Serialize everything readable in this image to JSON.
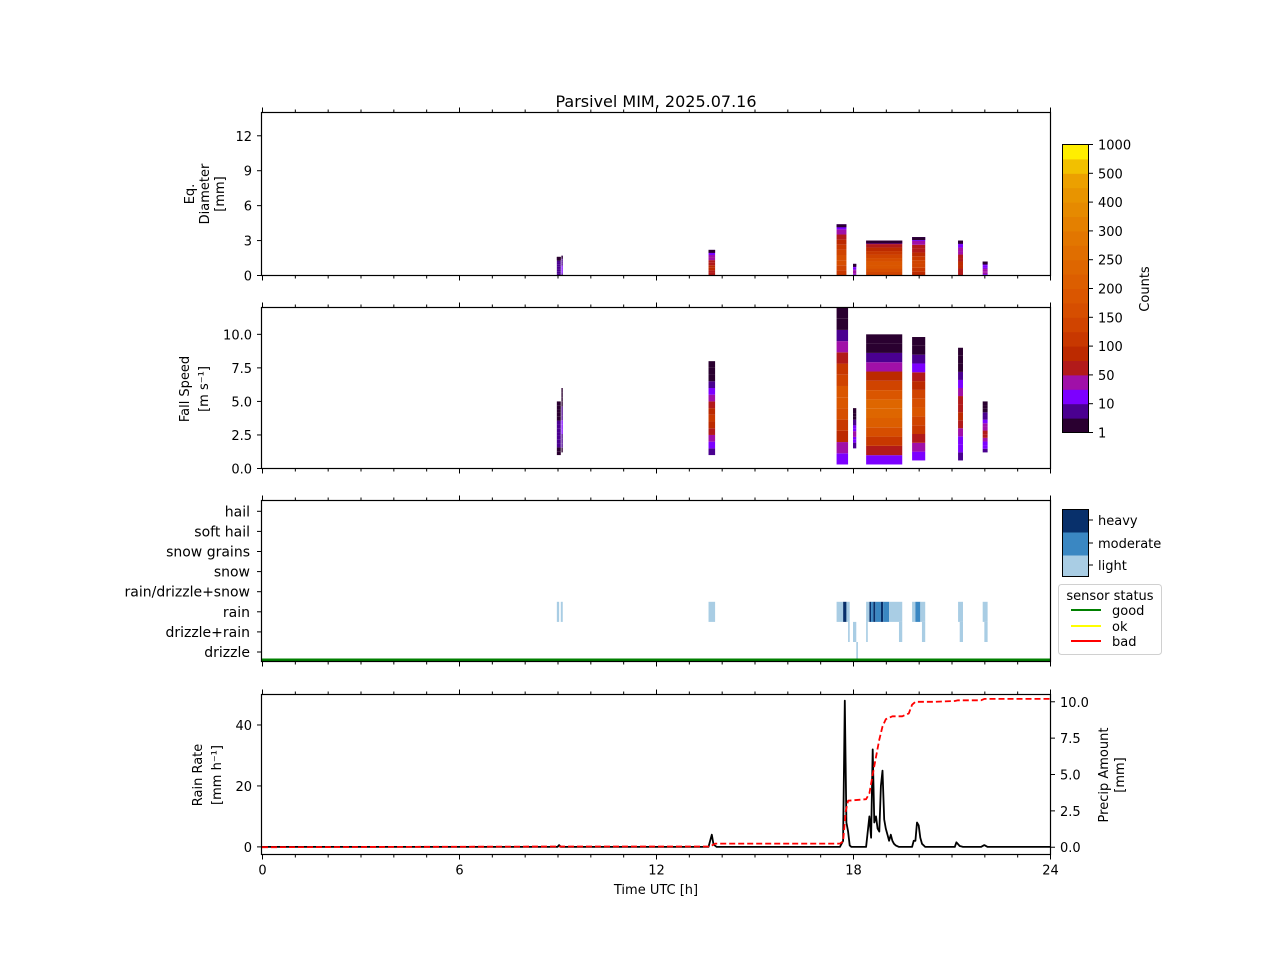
{
  "figure": {
    "title": "Parsivel MIM, 2025.07.16",
    "xlabel": "Time UTC [h]",
    "xticks": [
      "0",
      "6",
      "12",
      "18",
      "24"
    ]
  },
  "chart_data": [
    {
      "type": "heatmap",
      "name": "diameter-panel",
      "ylabel_lines": [
        "Eq.",
        "Diameter",
        "[mm]"
      ],
      "xlim": [
        0,
        24
      ],
      "ylim": [
        0,
        14
      ],
      "yticks": [
        "0",
        "3",
        "6",
        "9",
        "12"
      ],
      "ytick_values": [
        0,
        3,
        6,
        9,
        12
      ],
      "colorbar": {
        "label": "Counts",
        "tick_labels": [
          "1",
          "10",
          "50",
          "100",
          "150",
          "200",
          "250",
          "300",
          "400",
          "500",
          "1000"
        ],
        "colors": [
          "#2a0030",
          "#4a0090",
          "#7c00ff",
          "#a010a8",
          "#b21a1a",
          "#bc2a00",
          "#c83800",
          "#d04400",
          "#d64e00",
          "#da5600",
          "#dc5e00",
          "#de6600",
          "#e06e00",
          "#e27600",
          "#e48000",
          "#e68a00",
          "#e89400",
          "#eca000",
          "#f2c000",
          "#ffee00"
        ]
      },
      "events": [
        {
          "t0": 8.98,
          "t1": 9.1,
          "ymax": 1.6,
          "level": 1
        },
        {
          "t0": 9.12,
          "t1": 9.16,
          "ymax": 1.7,
          "level": 2
        },
        {
          "t0": 13.6,
          "t1": 13.8,
          "ymax": 2.2,
          "level": 5
        },
        {
          "t0": 17.5,
          "t1": 17.8,
          "ymax": 4.4,
          "level": 8
        },
        {
          "t0": 18.0,
          "t1": 18.1,
          "ymax": 1.0,
          "level": 3
        },
        {
          "t0": 18.4,
          "t1": 19.5,
          "ymax": 3.0,
          "level": 9
        },
        {
          "t0": 19.8,
          "t1": 20.2,
          "ymax": 3.3,
          "level": 7
        },
        {
          "t0": 21.2,
          "t1": 21.35,
          "ymax": 3.0,
          "level": 5
        },
        {
          "t0": 21.95,
          "t1": 22.1,
          "ymax": 1.2,
          "level": 3
        }
      ]
    },
    {
      "type": "heatmap",
      "name": "fallspeed-panel",
      "ylabel_lines": [
        "Fall Speed",
        "[m s⁻¹]"
      ],
      "xlim": [
        0,
        24
      ],
      "ylim": [
        0,
        12
      ],
      "yticks": [
        "0.0",
        "2.5",
        "5.0",
        "7.5",
        "10.0"
      ],
      "ytick_values": [
        0,
        2.5,
        5,
        7.5,
        10
      ],
      "events": [
        {
          "t0": 8.98,
          "t1": 9.1,
          "ymin": 1.0,
          "ymax": 5.0,
          "level": 1
        },
        {
          "t0": 9.12,
          "t1": 9.16,
          "ymin": 1.2,
          "ymax": 6.0,
          "level": 2
        },
        {
          "t0": 13.6,
          "t1": 13.8,
          "ymin": 1.0,
          "ymax": 8.0,
          "level": 6
        },
        {
          "t0": 17.5,
          "t1": 17.85,
          "ymin": 0.3,
          "ymax": 12.0,
          "level": 10
        },
        {
          "t0": 18.0,
          "t1": 18.1,
          "ymin": 1.5,
          "ymax": 4.5,
          "level": 3
        },
        {
          "t0": 18.4,
          "t1": 19.5,
          "ymin": 0.3,
          "ymax": 10.0,
          "level": 12
        },
        {
          "t0": 19.8,
          "t1": 20.2,
          "ymin": 0.6,
          "ymax": 9.8,
          "level": 9
        },
        {
          "t0": 21.2,
          "t1": 21.35,
          "ymin": 0.6,
          "ymax": 9.0,
          "level": 5
        },
        {
          "t0": 21.95,
          "t1": 22.1,
          "ymin": 1.2,
          "ymax": 5.0,
          "level": 4
        }
      ]
    },
    {
      "type": "heatmap",
      "name": "precip-type-panel",
      "categories": [
        "drizzle",
        "drizzle+rain",
        "rain",
        "rain/drizzle+snow",
        "snow",
        "snow grains",
        "soft hail",
        "hail"
      ],
      "xlim": [
        0,
        24
      ],
      "intensity_legend": {
        "labels": [
          "heavy",
          "moderate",
          "light"
        ],
        "colors": [
          "#08306b",
          "#3a87c2",
          "#a9cde4"
        ]
      },
      "sensor_status_legend": {
        "title": "sensor status",
        "labels": [
          "good",
          "ok",
          "bad"
        ],
        "colors": [
          "#008000",
          "#ffff00",
          "#ff0000"
        ]
      },
      "sensor_status": "good",
      "segments": [
        {
          "category": "rain",
          "t0": 8.98,
          "t1": 9.05,
          "intensity": "light"
        },
        {
          "category": "rain",
          "t0": 9.1,
          "t1": 9.16,
          "intensity": "light"
        },
        {
          "category": "rain",
          "t0": 13.6,
          "t1": 13.8,
          "intensity": "light"
        },
        {
          "category": "rain",
          "t0": 17.5,
          "t1": 17.7,
          "intensity": "light"
        },
        {
          "category": "rain",
          "t0": 17.7,
          "t1": 17.8,
          "intensity": "heavy"
        },
        {
          "category": "rain",
          "t0": 17.8,
          "t1": 17.9,
          "intensity": "light"
        },
        {
          "category": "rain",
          "t0": 18.4,
          "t1": 18.5,
          "intensity": "light"
        },
        {
          "category": "rain",
          "t0": 18.5,
          "t1": 18.55,
          "intensity": "heavy"
        },
        {
          "category": "rain",
          "t0": 18.55,
          "t1": 18.62,
          "intensity": "moderate"
        },
        {
          "category": "rain",
          "t0": 18.62,
          "t1": 18.68,
          "intensity": "heavy"
        },
        {
          "category": "rain",
          "t0": 18.68,
          "t1": 18.85,
          "intensity": "moderate"
        },
        {
          "category": "rain",
          "t0": 18.85,
          "t1": 18.92,
          "intensity": "heavy"
        },
        {
          "category": "rain",
          "t0": 18.92,
          "t1": 19.1,
          "intensity": "moderate"
        },
        {
          "category": "rain",
          "t0": 19.1,
          "t1": 19.5,
          "intensity": "light"
        },
        {
          "category": "rain",
          "t0": 19.8,
          "t1": 19.9,
          "intensity": "light"
        },
        {
          "category": "rain",
          "t0": 19.9,
          "t1": 20.05,
          "intensity": "moderate"
        },
        {
          "category": "rain",
          "t0": 20.05,
          "t1": 20.2,
          "intensity": "light"
        },
        {
          "category": "rain",
          "t0": 21.2,
          "t1": 21.35,
          "intensity": "light"
        },
        {
          "category": "rain",
          "t0": 21.95,
          "t1": 22.1,
          "intensity": "light"
        },
        {
          "category": "drizzle+rain",
          "t0": 17.85,
          "t1": 17.9,
          "intensity": "light"
        },
        {
          "category": "drizzle+rain",
          "t0": 18.0,
          "t1": 18.1,
          "intensity": "light"
        },
        {
          "category": "drizzle+rain",
          "t0": 18.4,
          "t1": 18.45,
          "intensity": "light"
        },
        {
          "category": "drizzle+rain",
          "t0": 19.4,
          "t1": 19.5,
          "intensity": "light"
        },
        {
          "category": "drizzle+rain",
          "t0": 20.1,
          "t1": 20.2,
          "intensity": "light"
        },
        {
          "category": "drizzle+rain",
          "t0": 21.25,
          "t1": 21.35,
          "intensity": "light"
        },
        {
          "category": "drizzle+rain",
          "t0": 22.0,
          "t1": 22.1,
          "intensity": "light"
        },
        {
          "category": "drizzle",
          "t0": 18.1,
          "t1": 18.15,
          "intensity": "light"
        }
      ]
    },
    {
      "type": "line",
      "name": "rainrate-panel",
      "ylabel_lines": [
        "Rain Rate",
        "[mm h⁻¹]"
      ],
      "y2label_lines": [
        "Precip Amount",
        "[mm]"
      ],
      "xlim": [
        0,
        24
      ],
      "ylim": [
        -2.5,
        50
      ],
      "y2lim": [
        -0.5,
        10.5
      ],
      "yticks": [
        "0",
        "20",
        "40"
      ],
      "ytick_values": [
        0,
        20,
        40
      ],
      "y2ticks": [
        "0.0",
        "2.5",
        "5.0",
        "7.5",
        "10.0"
      ],
      "y2tick_values": [
        0,
        2.5,
        5,
        7.5,
        10
      ],
      "series": [
        {
          "name": "rain rate",
          "color": "#000000",
          "style": "solid",
          "x": [
            0,
            9.0,
            9.05,
            9.1,
            13.6,
            13.7,
            13.75,
            13.85,
            17.6,
            17.7,
            17.75,
            17.8,
            17.85,
            17.9,
            17.95,
            18.0,
            18.4,
            18.5,
            18.55,
            18.6,
            18.65,
            18.7,
            18.75,
            18.8,
            18.85,
            18.9,
            18.95,
            19.0,
            19.05,
            19.1,
            19.15,
            19.2,
            19.25,
            19.3,
            19.4,
            19.8,
            19.85,
            19.9,
            19.95,
            20.0,
            20.05,
            20.1,
            20.2,
            21.1,
            21.15,
            21.25,
            21.35,
            21.9,
            22.0,
            22.1,
            24
          ],
          "y": [
            0,
            0,
            0.6,
            0,
            0,
            4.0,
            0.8,
            0,
            0,
            2,
            48,
            8,
            5,
            0.5,
            0,
            0,
            0,
            10,
            3,
            32,
            8,
            10,
            6,
            5,
            20,
            25,
            9,
            6,
            4,
            2,
            4,
            2,
            1,
            0.5,
            0,
            0,
            2,
            2,
            8,
            7,
            3,
            1,
            0,
            0,
            1.5,
            0.3,
            0,
            0,
            0.6,
            0,
            0
          ]
        },
        {
          "name": "precip amount",
          "color": "#ff0000",
          "style": "dashed",
          "axis": "right",
          "x": [
            0,
            9.1,
            13.65,
            13.8,
            17.6,
            17.7,
            17.78,
            17.85,
            18.4,
            18.5,
            18.6,
            18.7,
            18.8,
            18.9,
            19.0,
            19.2,
            19.5,
            19.7,
            19.8,
            19.9,
            20.0,
            20.5,
            21.1,
            21.2,
            21.9,
            22.0,
            24
          ],
          "y": [
            0,
            0.05,
            0.05,
            0.25,
            0.25,
            0.4,
            2.5,
            3.2,
            3.3,
            3.7,
            5.0,
            6.2,
            7.4,
            8.3,
            8.8,
            9.0,
            9.0,
            9.2,
            9.8,
            10.0,
            10.0,
            10.0,
            10.05,
            10.1,
            10.1,
            10.2,
            10.2
          ]
        }
      ]
    }
  ]
}
